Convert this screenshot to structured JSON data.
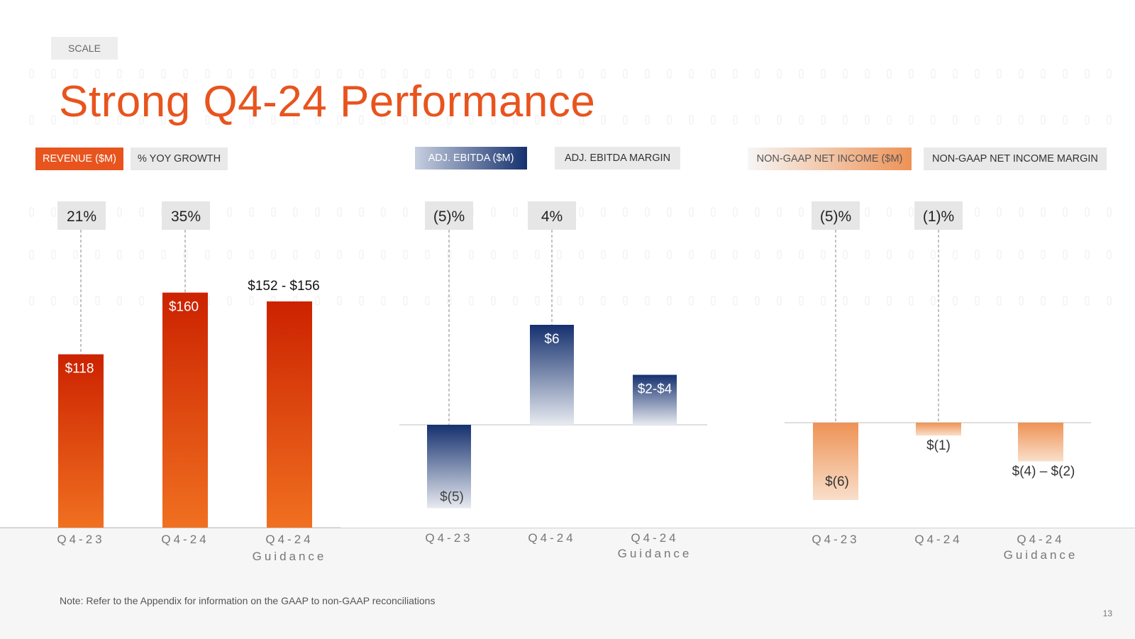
{
  "header": {
    "section_tag": "SCALE",
    "title": "Strong Q4-24 Performance"
  },
  "legends": {
    "revenue": "REVENUE ($M)",
    "yoy_growth": "% YOY GROWTH",
    "ebitda": "ADJ. EBITDA ($M)",
    "ebitda_margin": "ADJ. EBITDA MARGIN",
    "net_income": "NON-GAAP NET INCOME ($M)",
    "net_income_margin": "NON-GAAP NET INCOME MARGIN"
  },
  "colors": {
    "accent_orange": "#e8541e",
    "revenue_top": "#cc2200",
    "revenue_bottom": "#f07020",
    "ebitda_top": "#14306e",
    "ebitda_bottom": "#e7eaf0",
    "income_top": "#ee9255",
    "income_bottom": "#f9dfca"
  },
  "chart_data": [
    {
      "type": "bar",
      "categories": [
        "Q4-23",
        "Q4-24",
        "Q4-24 Guidance"
      ],
      "values": [
        118,
        160,
        154
      ],
      "value_labels": [
        "$118",
        "$160",
        "$152 - $156"
      ],
      "secondary_labels": [
        "21%",
        "35%"
      ],
      "ylim": [
        0,
        175
      ]
    },
    {
      "type": "bar",
      "categories": [
        "Q4-23",
        "Q4-24",
        "Q4-24 Guidance"
      ],
      "values": [
        -5,
        6,
        3
      ],
      "value_labels": [
        "$(5)",
        "$6",
        "$2-$4"
      ],
      "secondary_labels": [
        "(5)%",
        "4%"
      ],
      "ylim": [
        -6,
        10
      ]
    },
    {
      "type": "bar",
      "categories": [
        "Q4-23",
        "Q4-24",
        "Q4-24 Guidance"
      ],
      "values": [
        -6,
        -1,
        -3
      ],
      "value_labels": [
        "$(6)",
        "$(1)",
        "$(4) – $(2)"
      ],
      "secondary_labels": [
        "(5)%",
        "(1)%"
      ],
      "ylim": [
        -8,
        8
      ]
    }
  ],
  "footer": {
    "note": "Note: Refer to the Appendix for information on the GAAP to non-GAAP reconciliations",
    "page_number": "13"
  }
}
